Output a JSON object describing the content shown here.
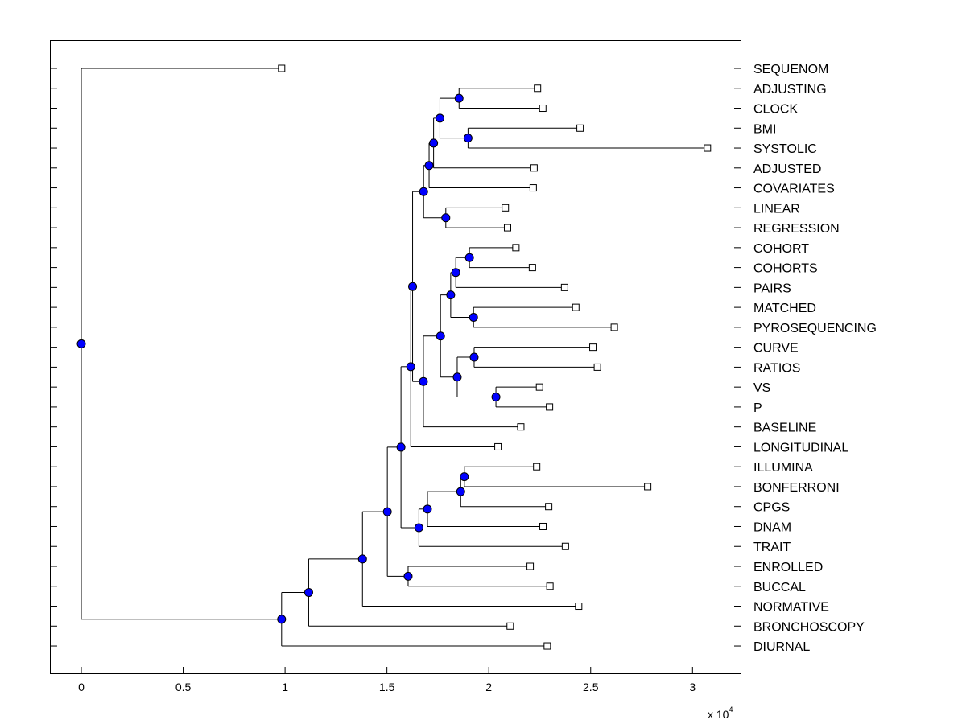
{
  "chart_data": {
    "type": "dendrogram",
    "title": "",
    "xlabel": "",
    "ylabel": "",
    "x_multiplier": {
      "base": "x 10",
      "exponent": "4"
    },
    "xlim": [
      -0.15,
      3.24
    ],
    "xticks": [
      {
        "value": 0,
        "label": "0"
      },
      {
        "value": 0.5,
        "label": "0.5"
      },
      {
        "value": 1,
        "label": "1"
      },
      {
        "value": 1.5,
        "label": "1.5"
      },
      {
        "value": 2,
        "label": "2"
      },
      {
        "value": 2.5,
        "label": "2.5"
      },
      {
        "value": 3,
        "label": "3"
      }
    ],
    "grid": false,
    "leaves": [
      {
        "label": "SEQUENOM",
        "value": 0.983
      },
      {
        "label": "ADJUSTING",
        "value": 2.239
      },
      {
        "label": "CLOCK",
        "value": 2.265
      },
      {
        "label": "BMI",
        "value": 2.448
      },
      {
        "label": "SYSTOLIC",
        "value": 3.073
      },
      {
        "label": "ADJUSTED",
        "value": 2.222
      },
      {
        "label": "COVARIATES",
        "value": 2.218
      },
      {
        "label": "LINEAR",
        "value": 2.081
      },
      {
        "label": "REGRESSION",
        "value": 2.092
      },
      {
        "label": "COHORT",
        "value": 2.133
      },
      {
        "label": "COHORTS",
        "value": 2.214
      },
      {
        "label": "PAIRS",
        "value": 2.372
      },
      {
        "label": "MATCHED",
        "value": 2.427
      },
      {
        "label": "PYROSEQUENCING",
        "value": 2.616
      },
      {
        "label": "CURVE",
        "value": 2.511
      },
      {
        "label": "RATIOS",
        "value": 2.533
      },
      {
        "label": "VS",
        "value": 2.249
      },
      {
        "label": "P",
        "value": 2.298
      },
      {
        "label": "BASELINE",
        "value": 2.157
      },
      {
        "label": "LONGITUDINAL",
        "value": 2.045
      },
      {
        "label": "ILLUMINA",
        "value": 2.235
      },
      {
        "label": "BONFERRONI",
        "value": 2.78
      },
      {
        "label": "CPGS",
        "value": 2.294
      },
      {
        "label": "DNAM",
        "value": 2.266
      },
      {
        "label": "TRAIT",
        "value": 2.376
      },
      {
        "label": "ENROLLED",
        "value": 2.203
      },
      {
        "label": "BUCCAL",
        "value": 2.3
      },
      {
        "label": "NORMATIVE",
        "value": 2.441
      },
      {
        "label": "BRONCHOSCOPY",
        "value": 2.105
      },
      {
        "label": "DIURNAL",
        "value": 2.287
      }
    ],
    "merges": [
      {
        "id": "a",
        "value": 1.854,
        "children": [
          "L1",
          "L2"
        ]
      },
      {
        "id": "b",
        "value": 1.898,
        "children": [
          "L3",
          "L4"
        ]
      },
      {
        "id": "c",
        "value": 1.76,
        "children": [
          "a",
          "b"
        ]
      },
      {
        "id": "d",
        "value": 1.729,
        "children": [
          "c",
          "L5"
        ]
      },
      {
        "id": "e",
        "value": 1.707,
        "children": [
          "d",
          "L6"
        ]
      },
      {
        "id": "f",
        "value": 1.789,
        "children": [
          "L7",
          "L8"
        ]
      },
      {
        "id": "g",
        "value": 1.68,
        "children": [
          "e",
          "f"
        ]
      },
      {
        "id": "h",
        "value": 1.905,
        "children": [
          "L9",
          "L10"
        ]
      },
      {
        "id": "i",
        "value": 1.838,
        "children": [
          "h",
          "L11"
        ]
      },
      {
        "id": "j",
        "value": 1.925,
        "children": [
          "L12",
          "L13"
        ]
      },
      {
        "id": "k",
        "value": 1.813,
        "children": [
          "i",
          "j"
        ]
      },
      {
        "id": "l",
        "value": 1.928,
        "children": [
          "L14",
          "L15"
        ]
      },
      {
        "id": "m",
        "value": 2.035,
        "children": [
          "L16",
          "L17"
        ]
      },
      {
        "id": "n",
        "value": 1.845,
        "children": [
          "l",
          "m"
        ]
      },
      {
        "id": "o",
        "value": 1.763,
        "children": [
          "k",
          "n"
        ]
      },
      {
        "id": "p",
        "value": 1.679,
        "children": [
          "o",
          "L18"
        ]
      },
      {
        "id": "q",
        "value": 1.626,
        "children": [
          "g",
          "p"
        ]
      },
      {
        "id": "r",
        "value": 1.617,
        "children": [
          "q",
          "L19"
        ]
      },
      {
        "id": "s",
        "value": 1.88,
        "children": [
          "L20",
          "L21"
        ]
      },
      {
        "id": "t",
        "value": 1.862,
        "children": [
          "s",
          "L22"
        ]
      },
      {
        "id": "u",
        "value": 1.699,
        "children": [
          "t",
          "L23"
        ]
      },
      {
        "id": "v",
        "value": 1.657,
        "children": [
          "u",
          "L24"
        ]
      },
      {
        "id": "w",
        "value": 1.569,
        "children": [
          "r",
          "v"
        ]
      },
      {
        "id": "x",
        "value": 1.604,
        "children": [
          "L25",
          "L26"
        ]
      },
      {
        "id": "y",
        "value": 1.502,
        "children": [
          "w",
          "x"
        ]
      },
      {
        "id": "z",
        "value": 1.38,
        "children": [
          "y",
          "L27"
        ]
      },
      {
        "id": "aa",
        "value": 1.116,
        "children": [
          "z",
          "L28"
        ]
      },
      {
        "id": "bb",
        "value": 0.983,
        "children": [
          "aa",
          "L29"
        ]
      },
      {
        "id": "root",
        "value": 0.0,
        "children": [
          "L0",
          "bb"
        ]
      }
    ]
  }
}
